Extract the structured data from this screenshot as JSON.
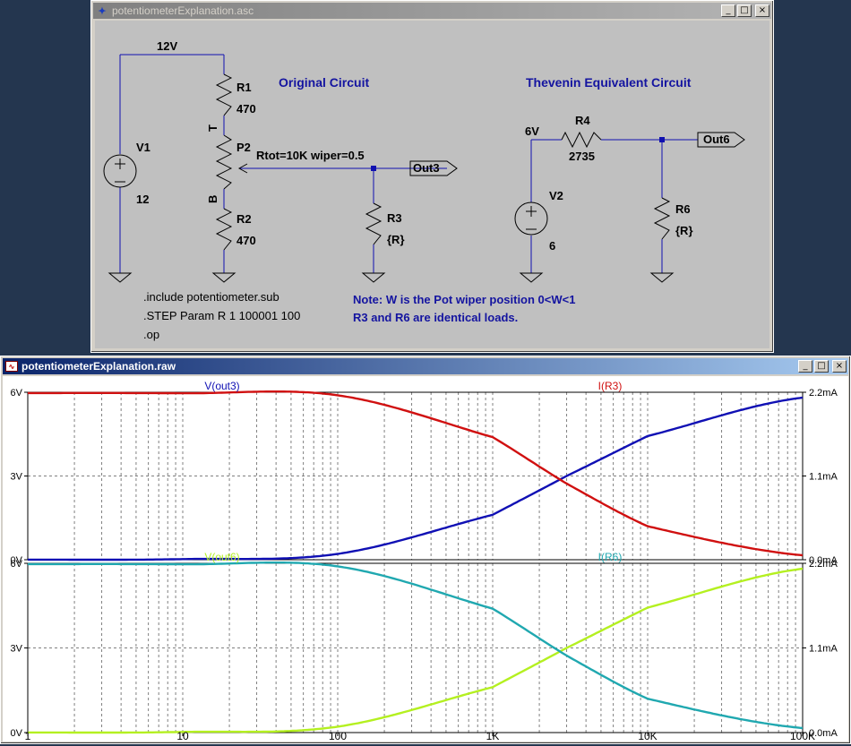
{
  "schematic_window": {
    "title": "potentiometerExplanation.asc",
    "components": {
      "supply_label": "12V",
      "r1_name": "R1",
      "r1_value": "470",
      "pot_t": "T",
      "pot_b": "B",
      "p2_name": "P2",
      "p2_params": "Rtot=10K wiper=0.5",
      "r2_name": "R2",
      "r2_value": "470",
      "v1_name": "V1",
      "v1_value": "12",
      "r3_name": "R3",
      "r3_value": "{R}",
      "out3_label": "Out3",
      "v2_label": "6V",
      "r4_name": "R4",
      "r4_value": "2735",
      "out6_label": "Out6",
      "v2_name": "V2",
      "v2_value": "6",
      "r6_name": "R6",
      "r6_value": "{R}"
    },
    "headings": {
      "original": "Original Circuit",
      "thevenin": "Thevenin Equivalent Circuit"
    },
    "directives": [
      ".include potentiometer.sub",
      ".STEP Param R 1 100001 100",
      ".op"
    ],
    "note_lines": [
      "Note: W is the Pot wiper position 0<W<1",
      "R3 and R6 are identical loads."
    ]
  },
  "plot_window": {
    "title": "potentiometerExplanation.raw",
    "x_ticks": [
      "1",
      "10",
      "100",
      "1K",
      "10K",
      "100K"
    ],
    "y_left_ticks": [
      "6V",
      "3V",
      "0V"
    ],
    "y_right_ticks": [
      "2.2mA",
      "1.1mA",
      "0.0mA"
    ]
  },
  "colors": {
    "v_out3": "#1010b4",
    "i_r3": "#d01010",
    "v_out6": "#b4f020",
    "i_r6": "#20a8b0",
    "schematic_text": "#000000",
    "schematic_heading": "#1414a0"
  },
  "chart_data": [
    {
      "type": "line",
      "x_scale": "log",
      "xlim": [
        1,
        100000
      ],
      "x_ticks": [
        "1",
        "10",
        "100",
        "1K",
        "10K",
        "100K"
      ],
      "ylim_left": [
        0,
        6
      ],
      "ylim_right": [
        0,
        2.2
      ],
      "y_left_ticks": [
        "6V",
        "3V",
        "0V"
      ],
      "y_right_ticks": [
        "2.2mA",
        "1.1mA",
        "0.0mA"
      ],
      "grid": true,
      "series": [
        {
          "name": "V(out3)",
          "axis": "left",
          "unit": "V",
          "x": [
            1,
            10,
            100,
            1000,
            3000,
            10000,
            100000
          ],
          "y": [
            0.002,
            0.022,
            0.21,
            1.61,
            3.0,
            4.43,
            5.81
          ]
        },
        {
          "name": "I(R3)",
          "axis": "right",
          "unit": "mA",
          "x": [
            1,
            10,
            100,
            1000,
            3000,
            10000,
            100000
          ],
          "y": [
            2.19,
            2.187,
            2.16,
            1.61,
            1.0,
            0.44,
            0.058
          ]
        }
      ]
    },
    {
      "type": "line",
      "x_scale": "log",
      "xlim": [
        1,
        100000
      ],
      "x_ticks": [
        "1",
        "10",
        "100",
        "1K",
        "10K",
        "100K"
      ],
      "ylim_left": [
        0,
        6
      ],
      "ylim_right": [
        0,
        2.2
      ],
      "y_left_ticks": [
        "6V",
        "3V",
        "0V"
      ],
      "y_right_ticks": [
        "2.2mA",
        "1.1mA",
        "0.0mA"
      ],
      "grid": true,
      "series": [
        {
          "name": "V(out6)",
          "axis": "left",
          "unit": "V",
          "x": [
            1,
            10,
            100,
            1000,
            3000,
            10000,
            100000
          ],
          "y": [
            0.002,
            0.022,
            0.21,
            1.61,
            3.0,
            4.43,
            5.81
          ]
        },
        {
          "name": "I(R6)",
          "axis": "right",
          "unit": "mA",
          "x": [
            1,
            10,
            100,
            1000,
            3000,
            10000,
            100000
          ],
          "y": [
            2.19,
            2.187,
            2.16,
            1.61,
            1.0,
            0.44,
            0.058
          ]
        }
      ]
    }
  ]
}
